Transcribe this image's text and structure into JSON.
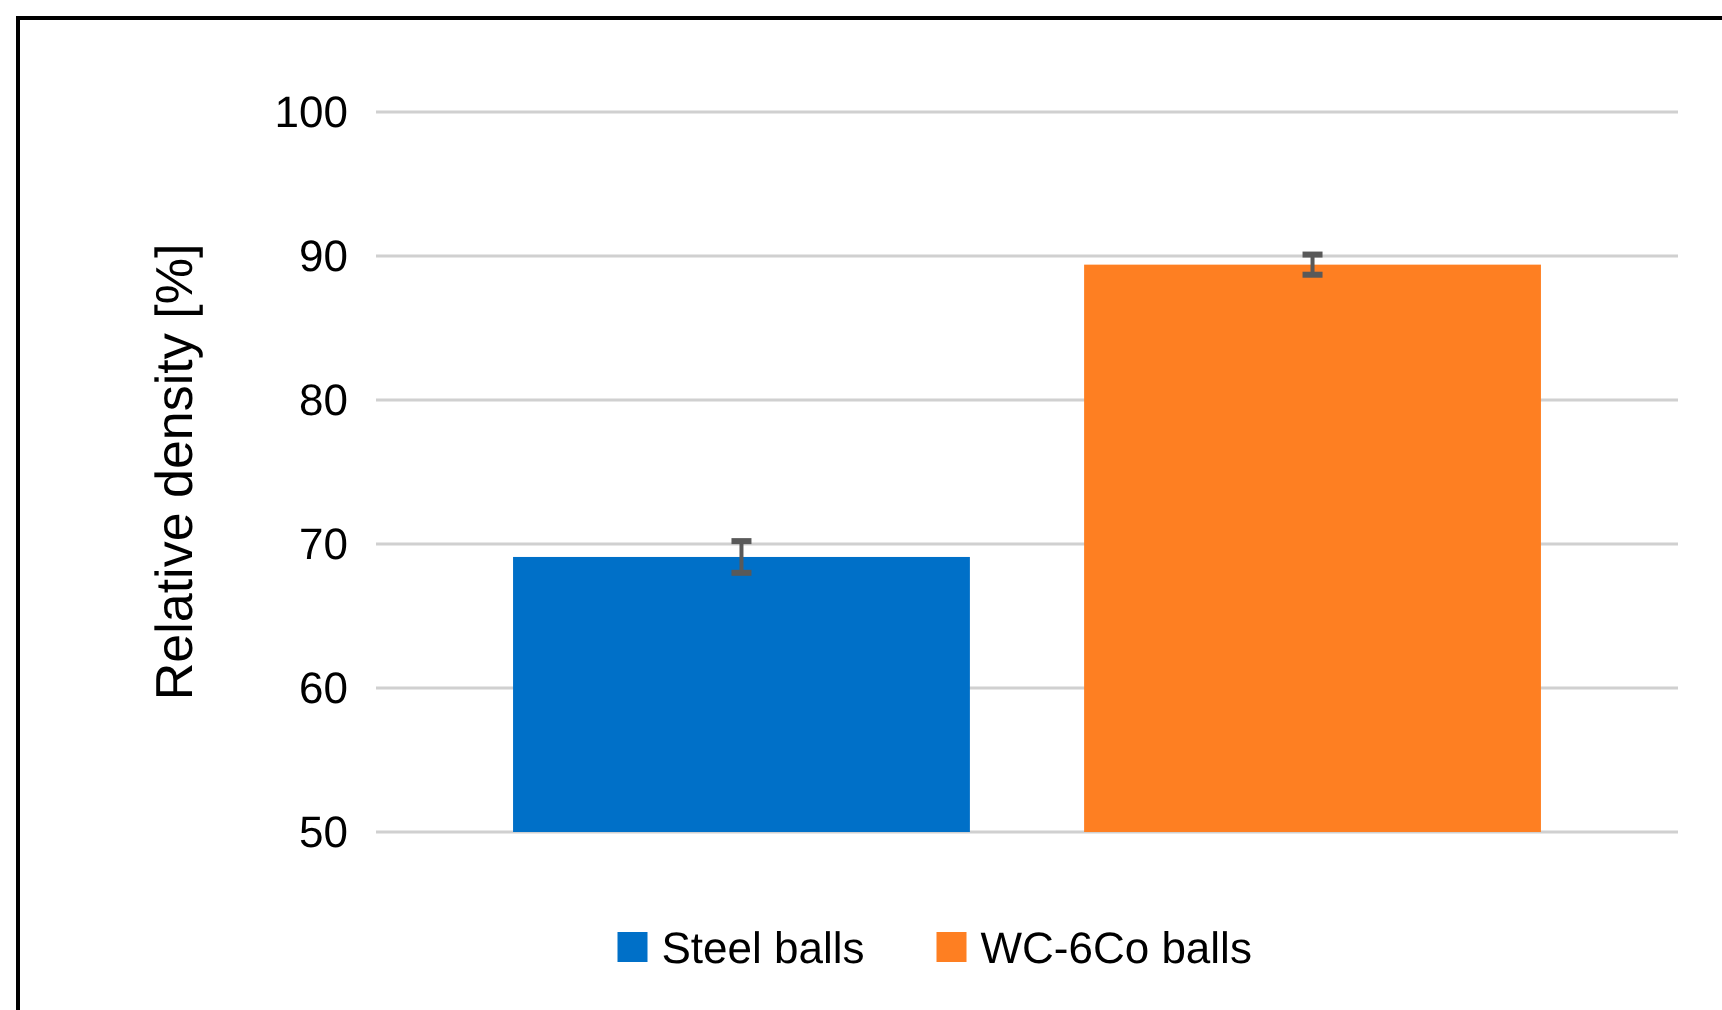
{
  "chart_data": {
    "type": "bar",
    "ylabel": "Relative density [%]",
    "categories": [
      null
    ],
    "series": [
      {
        "name": "Steel balls",
        "color": "#0070c8",
        "values": [
          69.1
        ],
        "errors": [
          1.1
        ]
      },
      {
        "name": "WC-6Co balls",
        "color": "#fe7f22",
        "values": [
          89.4
        ],
        "errors": [
          0.7
        ]
      }
    ],
    "ylim": [
      50,
      100
    ],
    "yticks": [
      50,
      60,
      70,
      80,
      90,
      100
    ],
    "grid": "y",
    "legend": "bottom"
  }
}
